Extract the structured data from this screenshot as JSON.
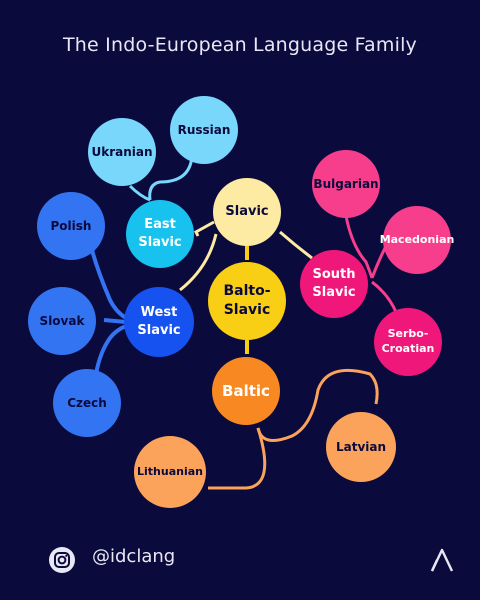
{
  "title": "The Indo-European Language Family",
  "nodes": {
    "ukranian": {
      "label": "Ukranian",
      "color": "#79d7fb",
      "text_color": "#0b0a3d"
    },
    "russian": {
      "label": "Russian",
      "color": "#79d7fb",
      "text_color": "#0b0a3d"
    },
    "east_slavic": {
      "label": "East\nSlavic",
      "color": "#17c2ee",
      "text_color": "#ffffff"
    },
    "polish": {
      "label": "Polish",
      "color": "#3374f2",
      "text_color": "#0b0a3d"
    },
    "slovak": {
      "label": "Slovak",
      "color": "#3374f2",
      "text_color": "#0b0a3d"
    },
    "czech": {
      "label": "Czech",
      "color": "#3374f2",
      "text_color": "#0b0a3d"
    },
    "west_slavic": {
      "label": "West\nSlavic",
      "color": "#1652f0",
      "text_color": "#ffffff"
    },
    "slavic": {
      "label": "Slavic",
      "color": "#fdeaa3",
      "text_color": "#0b0a3d"
    },
    "balto_slavic": {
      "label": "Balto-\nSlavic",
      "color": "#f8cf14",
      "text_color": "#0b0a3d"
    },
    "baltic": {
      "label": "Baltic",
      "color": "#f88922",
      "text_color": "#ffffff"
    },
    "lithuanian": {
      "label": "Lithuanian",
      "color": "#fba35a",
      "text_color": "#0b0a3d"
    },
    "latvian": {
      "label": "Latvian",
      "color": "#fba35a",
      "text_color": "#0b0a3d"
    },
    "bulgarian": {
      "label": "Bulgarian",
      "color": "#f73e8c",
      "text_color": "#0b0a3d"
    },
    "macedonian": {
      "label": "Macedonian",
      "color": "#f73e8c",
      "text_color": "#ffffff"
    },
    "south_slavic": {
      "label": "South\nSlavic",
      "color": "#f0177a",
      "text_color": "#ffffff"
    },
    "serbo_croatian": {
      "label": "Serbo-\nCroatian",
      "color": "#f0177a",
      "text_color": "#ffffff"
    }
  },
  "footer": {
    "handle": "@idclang",
    "social_icon": "instagram-icon",
    "logo_icon": "triangle-logo-icon"
  }
}
